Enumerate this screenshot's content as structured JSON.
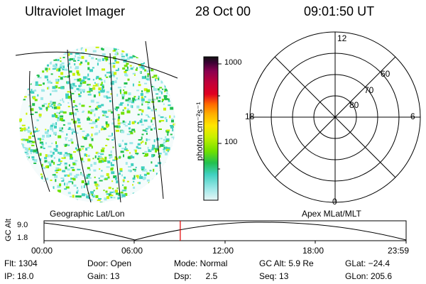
{
  "header": {
    "title": "Ultraviolet Imager",
    "date": "28 Oct 00",
    "time": "09:01:50 UT"
  },
  "left_panel": {
    "caption": "Geographic Lat/Lon"
  },
  "colorbar": {
    "unit_label": "photon cm⁻²s⁻¹",
    "ticks": [
      "1000",
      "100"
    ],
    "colors": [
      "#111111",
      "#3a0033",
      "#8a0050",
      "#c0003a",
      "#e00020",
      "#ff6a00",
      "#ffb000",
      "#ffe600",
      "#c8f000",
      "#6ee000",
      "#22c050",
      "#40d0c0",
      "#9ee8e8",
      "#e6f6f6"
    ]
  },
  "right_panel": {
    "caption": "Apex MLat/MLT",
    "lat_labels": [
      "60",
      "70",
      "80"
    ],
    "mlt_labels": {
      "top": "12",
      "left": "18",
      "right": "6",
      "bottom": "0"
    }
  },
  "timeline": {
    "ylabel": "GC Alt",
    "ymax": "9.0",
    "ymin": "1.8",
    "xticks": [
      "00:00",
      "06:00",
      "12:00",
      "18:00",
      "23:59"
    ],
    "current_time_hours": 9.03,
    "marker_color": "#e00000"
  },
  "info": {
    "flt": "Flt: 1304",
    "ip": "IP: 18.0",
    "door": "Door: Open",
    "gain": "Gain: 13",
    "mode": "Mode: Normal",
    "dsp": "Dsp:      2.5",
    "gcalt": "GC Alt: 5.9 Re",
    "seq": "Seq: 13",
    "glat": "GLat: −24.4",
    "glon": "GLon: 205.6"
  }
}
